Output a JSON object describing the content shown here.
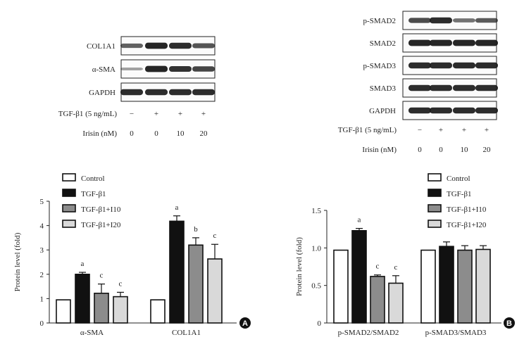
{
  "colors": {
    "control": "#ffffff",
    "tgf": "#111111",
    "tgf_i10": "#8c8c8c",
    "tgf_i20": "#d9d9d9",
    "ink": "#222222"
  },
  "panel_a": {
    "badge": "A",
    "blot": {
      "rows": [
        {
          "label": "COL1A1",
          "intensities": [
            0.55,
            0.95,
            0.9,
            0.65
          ]
        },
        {
          "label": "α-SMA",
          "intensities": [
            0.15,
            0.95,
            0.85,
            0.75
          ]
        },
        {
          "label": "GAPDH",
          "intensities": [
            0.9,
            0.9,
            0.9,
            0.9
          ]
        }
      ],
      "treatments": [
        {
          "label": "TGF-β1 (5 ng/mL)",
          "values": [
            "−",
            "+",
            "+",
            "+"
          ]
        },
        {
          "label": "Irisin (nM)",
          "values": [
            "0",
            "0",
            "10",
            "20"
          ]
        }
      ]
    }
  },
  "panel_b": {
    "badge": "B",
    "blot": {
      "rows": [
        {
          "label": "p-SMAD2",
          "intensities": [
            0.7,
            0.9,
            0.45,
            0.6
          ]
        },
        {
          "label": "SMAD2",
          "intensities": [
            0.95,
            0.95,
            0.95,
            0.95
          ]
        },
        {
          "label": "p-SMAD3",
          "intensities": [
            0.9,
            0.9,
            0.9,
            0.9
          ]
        },
        {
          "label": "SMAD3",
          "intensities": [
            0.9,
            0.9,
            0.9,
            0.9
          ]
        },
        {
          "label": "GAPDH",
          "intensities": [
            0.9,
            0.9,
            0.9,
            0.9
          ]
        }
      ],
      "treatments": [
        {
          "label": "TGF-β1 (5 ng/mL)",
          "values": [
            "−",
            "+",
            "+",
            "+"
          ]
        },
        {
          "label": "Irisin (nM)",
          "values": [
            "0",
            "0",
            "10",
            "20"
          ]
        }
      ]
    }
  },
  "chart_data": [
    {
      "type": "bar",
      "title": "",
      "xlabel": "",
      "ylabel": "Protein level (fold)",
      "ylim": [
        0,
        5
      ],
      "yticks": [
        "0",
        "1",
        "2",
        "3",
        "4",
        "5"
      ],
      "categories": [
        "α-SMA",
        "COL1A1"
      ],
      "legend": [
        "Control",
        "TGF-β1",
        "TGF-β1+I10",
        "TGF-β1+I20"
      ],
      "series": [
        {
          "name": "Control",
          "values": [
            0.95,
            0.95
          ],
          "errors": [
            0,
            0
          ],
          "letters": [
            "",
            ""
          ]
        },
        {
          "name": "TGF-β1",
          "values": [
            2.0,
            4.18
          ],
          "errors": [
            0.08,
            0.22
          ],
          "letters": [
            "a",
            "a"
          ]
        },
        {
          "name": "TGF-β1+I10",
          "values": [
            1.22,
            3.2
          ],
          "errors": [
            0.38,
            0.3
          ],
          "letters": [
            "c",
            "b"
          ]
        },
        {
          "name": "TGF-β1+I20",
          "values": [
            1.08,
            2.63
          ],
          "errors": [
            0.18,
            0.6
          ],
          "letters": [
            "c",
            "c"
          ]
        }
      ]
    },
    {
      "type": "bar",
      "title": "",
      "xlabel": "",
      "ylabel": "Protein level (fold)",
      "ylim": [
        0,
        1.5
      ],
      "yticks": [
        "0",
        "0.5",
        "1.0",
        "1.5"
      ],
      "categories": [
        "p-SMAD2/SMAD2",
        "p-SMAD3/SMAD3"
      ],
      "legend": [
        "Control",
        "TGF-β1",
        "TGF-β1+I10",
        "TGF-β1+I20"
      ],
      "series": [
        {
          "name": "Control",
          "values": [
            0.97,
            0.97
          ],
          "errors": [
            0,
            0
          ],
          "letters": [
            "",
            ""
          ]
        },
        {
          "name": "TGF-β1",
          "values": [
            1.23,
            1.02
          ],
          "errors": [
            0.03,
            0.06
          ],
          "letters": [
            "a",
            ""
          ]
        },
        {
          "name": "TGF-β1+I10",
          "values": [
            0.62,
            0.97
          ],
          "errors": [
            0.02,
            0.06
          ],
          "letters": [
            "c",
            ""
          ]
        },
        {
          "name": "TGF-β1+I20",
          "values": [
            0.53,
            0.98
          ],
          "errors": [
            0.1,
            0.05
          ],
          "letters": [
            "c",
            ""
          ]
        }
      ]
    }
  ]
}
